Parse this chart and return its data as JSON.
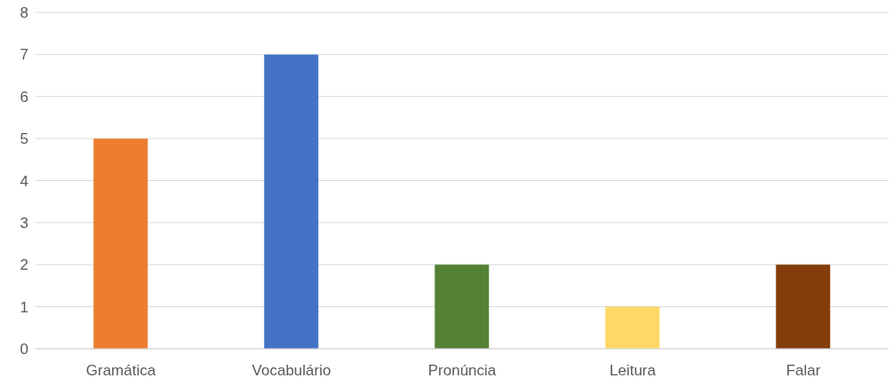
{
  "chart_data": {
    "type": "bar",
    "categories": [
      "Gramática",
      "Vocabulário",
      "Pronúncia",
      "Leitura",
      "Falar"
    ],
    "values": [
      5,
      7,
      2,
      1,
      2
    ],
    "colors": [
      "#ed7d31",
      "#4472c4",
      "#548235",
      "#ffd966",
      "#843c0c"
    ],
    "ylim": [
      0,
      8
    ],
    "yticks": [
      0,
      1,
      2,
      3,
      4,
      5,
      6,
      7,
      8
    ],
    "grid": "y",
    "legend": false
  }
}
